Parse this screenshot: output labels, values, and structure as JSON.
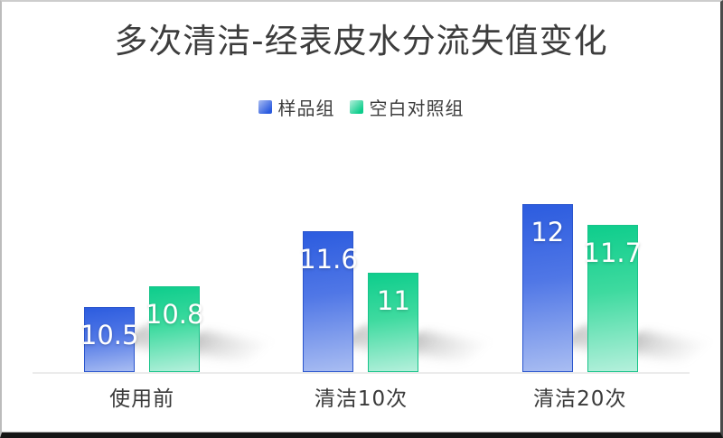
{
  "chart_data": {
    "type": "bar",
    "title": "多次清洁-经表皮水分流失值变化",
    "categories": [
      "使用前",
      "清洁10次",
      "清洁20次"
    ],
    "series": [
      {
        "name": "样品组",
        "values": [
          10.5,
          11.6,
          12
        ],
        "labels": [
          "10.5",
          "11.6",
          "12"
        ],
        "gradient": [
          "#2c5cdf",
          "#5077e6",
          "#a9bdf2"
        ],
        "border": "#2a55cd"
      },
      {
        "name": "空白对照组",
        "values": [
          10.8,
          11,
          11.7
        ],
        "labels": [
          "10.8",
          "11",
          "11.7"
        ],
        "gradient": [
          "#0ecd8c",
          "#3eda9f",
          "#b5f0dc"
        ],
        "border": "#17c389"
      }
    ],
    "ylim": [
      9.55,
      12.45
    ],
    "grid": false,
    "legend_position": "top",
    "value_label_color": "#ffffff",
    "axis_line_color": "#ebebeb"
  }
}
